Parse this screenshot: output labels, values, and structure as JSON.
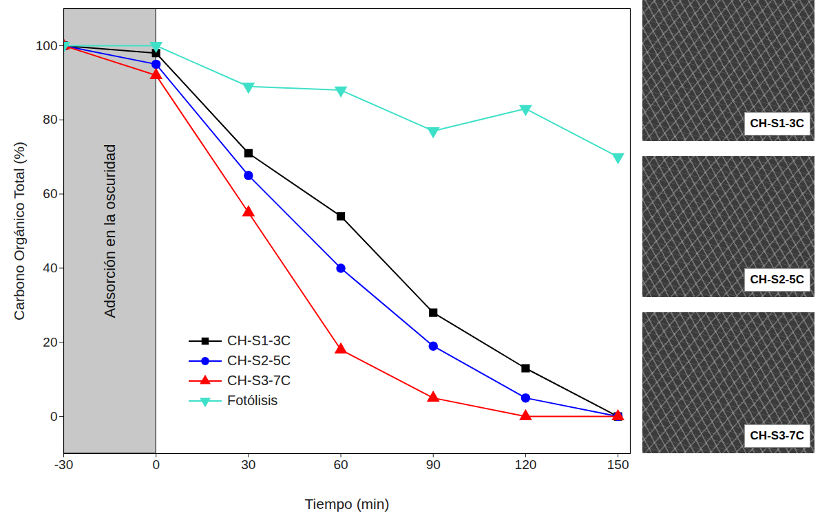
{
  "chart_data": {
    "type": "line",
    "x_label": "Tiempo (min)",
    "y_label": "Carbono Orgánico Total (%)",
    "x": [
      -30,
      0,
      30,
      60,
      90,
      120,
      150
    ],
    "series": [
      {
        "name": "CH-S1-3C",
        "color": "#000000",
        "marker": "square",
        "values": [
          100,
          98,
          71,
          54,
          28,
          13,
          0
        ]
      },
      {
        "name": "CH-S2-5C",
        "color": "#0000ff",
        "marker": "circle",
        "values": [
          100,
          95,
          65,
          40,
          19,
          5,
          0
        ]
      },
      {
        "name": "CH-S3-7C",
        "color": "#ff0000",
        "marker": "triangle",
        "values": [
          100,
          92,
          55,
          18,
          5,
          0,
          0
        ]
      },
      {
        "name": "Fotólisis",
        "color": "#3fe0c8",
        "marker": "triangle-down",
        "values": [
          100,
          100,
          89,
          88,
          77,
          83,
          70
        ]
      }
    ],
    "xlim": [
      -30,
      154
    ],
    "xticks": [
      -30,
      0,
      30,
      60,
      90,
      120,
      150
    ],
    "ylim": [
      -10,
      110
    ],
    "yticks": [
      0,
      20,
      40,
      60,
      80,
      100
    ],
    "grid": false,
    "legend": "lower left",
    "annotations": [
      {
        "text": "Adsorción en la oscuridad",
        "x_range": [
          -30,
          0
        ]
      }
    ],
    "images": [
      {
        "label": "CH-S1-3C"
      },
      {
        "label": "CH-S2-5C"
      },
      {
        "label": "CH-S3-7C"
      }
    ]
  }
}
